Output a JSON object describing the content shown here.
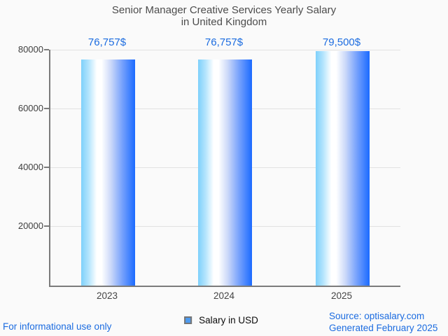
{
  "title": {
    "line1": "Senior Manager Creative Services Yearly Salary",
    "line2": "in United Kingdom"
  },
  "chart_data": {
    "type": "bar",
    "title": "Senior Manager Creative Services Yearly Salary in United Kingdom",
    "categories": [
      "2023",
      "2024",
      "2025"
    ],
    "values": [
      76757,
      76757,
      79500
    ],
    "value_labels": [
      "76,757$",
      "76,757$",
      "79,500$"
    ],
    "series_name": "Salary in USD",
    "xlabel": "",
    "ylabel": "",
    "ylim": [
      0,
      80000
    ],
    "yticks": [
      20000,
      40000,
      60000,
      80000
    ],
    "ytick_labels": [
      "20000",
      "40000",
      "60000",
      "80000"
    ],
    "grid": true,
    "legend_position": "bottom"
  },
  "legend": {
    "label": "Salary in USD",
    "marker": "blue-square-icon"
  },
  "footer": {
    "left": "For informational use only",
    "source": "Source: optisalary.com",
    "generated": "Generated February 2025"
  },
  "colors": {
    "background": "#fafafa",
    "accent_blue": "#1c6ce0",
    "bar_gradient_left": "#7ed0fb",
    "bar_gradient_mid": "#ffffff",
    "bar_gradient_right": "#1b6aff",
    "legend_marker_fill": "#4d9bf0",
    "axis": "#7b7b7b",
    "gridline": "#e2e2e2",
    "title_text": "#4c4c4c"
  }
}
